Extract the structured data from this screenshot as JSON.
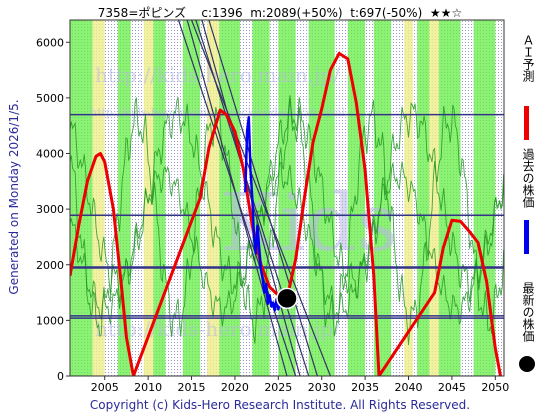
{
  "header": {
    "code_name": "7358=ポピンズ",
    "current": "c:1396",
    "mid": "m:2089(+50%)",
    "target": "t:697(-50%)",
    "stars": "★★☆"
  },
  "side_label": "Generated on Monday 2026/1/5.",
  "footer": "Copyright (c) Kids-Hero Research Institute. All Rights Reserved.",
  "legend": {
    "ai_forecast": "ＡＩ予測",
    "past_price": "過去の株価",
    "latest_price": "最新の株価"
  },
  "watermarks": [
    "http://kids-hero.main.jp/",
    "http://kids-hero.main.jp/stock/code/7358.html",
    "Kids",
    "http://kids-hero.main.jp/"
  ],
  "colors": {
    "ai_forecast": "#ee0000",
    "past_price": "#0000ee",
    "latest_marker": "#000000",
    "green_band": "#66ee44",
    "yellow_band": "#eeee88",
    "trend_lines": "#333366",
    "support_lines": "#333388"
  },
  "chart_data": {
    "type": "line",
    "x_ticks": [
      2005,
      2010,
      2015,
      2020,
      2025,
      2030,
      2035,
      2040,
      2045,
      2050
    ],
    "y_ticks": [
      0,
      1000,
      2000,
      3000,
      4000,
      5000,
      6000
    ],
    "xlim": [
      2001,
      2051
    ],
    "ylim": [
      0,
      6400
    ],
    "horizontal_lines": [
      4700,
      2890,
      1950,
      1080,
      1040
    ],
    "series": [
      {
        "name": "ＡＩ予測",
        "x": [
          2001,
          2002,
          2003,
          2004,
          2004.5,
          2005,
          2006,
          2007,
          2007.5,
          2008.3,
          2016,
          2017,
          2018.3,
          2019,
          2020,
          2021,
          2022,
          2023,
          2024,
          2025,
          2026,
          2027,
          2028,
          2029,
          2030,
          2031,
          2032,
          2033,
          2034,
          2035,
          2036,
          2036.6,
          2043,
          2044,
          2045,
          2046,
          2047,
          2048,
          2049,
          2050,
          2050.6
        ],
        "y": [
          1800,
          2700,
          3500,
          3950,
          4000,
          3850,
          3000,
          1500,
          700,
          0,
          3200,
          4100,
          4780,
          4700,
          4400,
          3700,
          2700,
          2000,
          1600,
          1450,
          1400,
          2100,
          3200,
          4200,
          4800,
          5500,
          5800,
          5700,
          4900,
          3700,
          1800,
          0,
          1500,
          2300,
          2800,
          2780,
          2600,
          2400,
          1700,
          500,
          0
        ]
      },
      {
        "name": "過去の株価",
        "x": [
          2021.2,
          2021.4,
          2021.6,
          2021.8,
          2022.0,
          2022.2,
          2022.4,
          2022.6,
          2022.8,
          2023.0,
          2023.2,
          2023.4,
          2023.6,
          2023.8,
          2024.0,
          2024.2,
          2024.4,
          2024.6,
          2024.8,
          2025.0,
          2025.2,
          2025.4,
          2025.6,
          2025.8,
          2026.0
        ],
        "y": [
          3300,
          4400,
          4650,
          3700,
          3200,
          2500,
          2200,
          2700,
          2300,
          1900,
          1750,
          1500,
          1650,
          1300,
          1450,
          1250,
          1320,
          1180,
          1380,
          1200,
          1350,
          1250,
          1420,
          1360,
          1396
        ]
      }
    ],
    "latest_point": {
      "x": 2026,
      "y": 1396
    },
    "trend_lines": [
      {
        "x": [
          2013.5,
          2027.0
        ],
        "y": [
          6400,
          0
        ]
      },
      {
        "x": [
          2014.5,
          2026.0
        ],
        "y": [
          6400,
          0
        ]
      },
      {
        "x": [
          2015.5,
          2028.5
        ],
        "y": [
          6400,
          0
        ]
      },
      {
        "x": [
          2016.2,
          2027.5
        ],
        "y": [
          6400,
          0
        ]
      },
      {
        "x": [
          2017.0,
          2029.5
        ],
        "y": [
          6400,
          0
        ]
      },
      {
        "x": [
          2015.0,
          2031.0
        ],
        "y": [
          6400,
          0
        ]
      }
    ],
    "bands": [
      {
        "x0": 2001.0,
        "x1": 2003.6,
        "color": "green"
      },
      {
        "x0": 2003.6,
        "x1": 2005.0,
        "color": "yellow"
      },
      {
        "x0": 2006.5,
        "x1": 2008.0,
        "color": "green"
      },
      {
        "x0": 2009.5,
        "x1": 2010.6,
        "color": "yellow"
      },
      {
        "x0": 2010.6,
        "x1": 2012.0,
        "color": "green"
      },
      {
        "x0": 2014.0,
        "x1": 2016.0,
        "color": "green"
      },
      {
        "x0": 2016.8,
        "x1": 2018.2,
        "color": "yellow"
      },
      {
        "x0": 2018.2,
        "x1": 2020.6,
        "color": "green"
      },
      {
        "x0": 2022.0,
        "x1": 2024.0,
        "color": "green"
      },
      {
        "x0": 2025.0,
        "x1": 2027.0,
        "color": "green"
      },
      {
        "x0": 2028.5,
        "x1": 2031.5,
        "color": "green"
      },
      {
        "x0": 2033.0,
        "x1": 2035.0,
        "color": "green"
      },
      {
        "x0": 2036.0,
        "x1": 2038.0,
        "color": "green"
      },
      {
        "x0": 2039.5,
        "x1": 2040.5,
        "color": "yellow"
      },
      {
        "x0": 2041.0,
        "x1": 2042.4,
        "color": "green"
      },
      {
        "x0": 2042.4,
        "x1": 2043.5,
        "color": "yellow"
      },
      {
        "x0": 2043.5,
        "x1": 2046.0,
        "color": "green"
      },
      {
        "x0": 2047.5,
        "x1": 2050.0,
        "color": "green"
      }
    ]
  }
}
